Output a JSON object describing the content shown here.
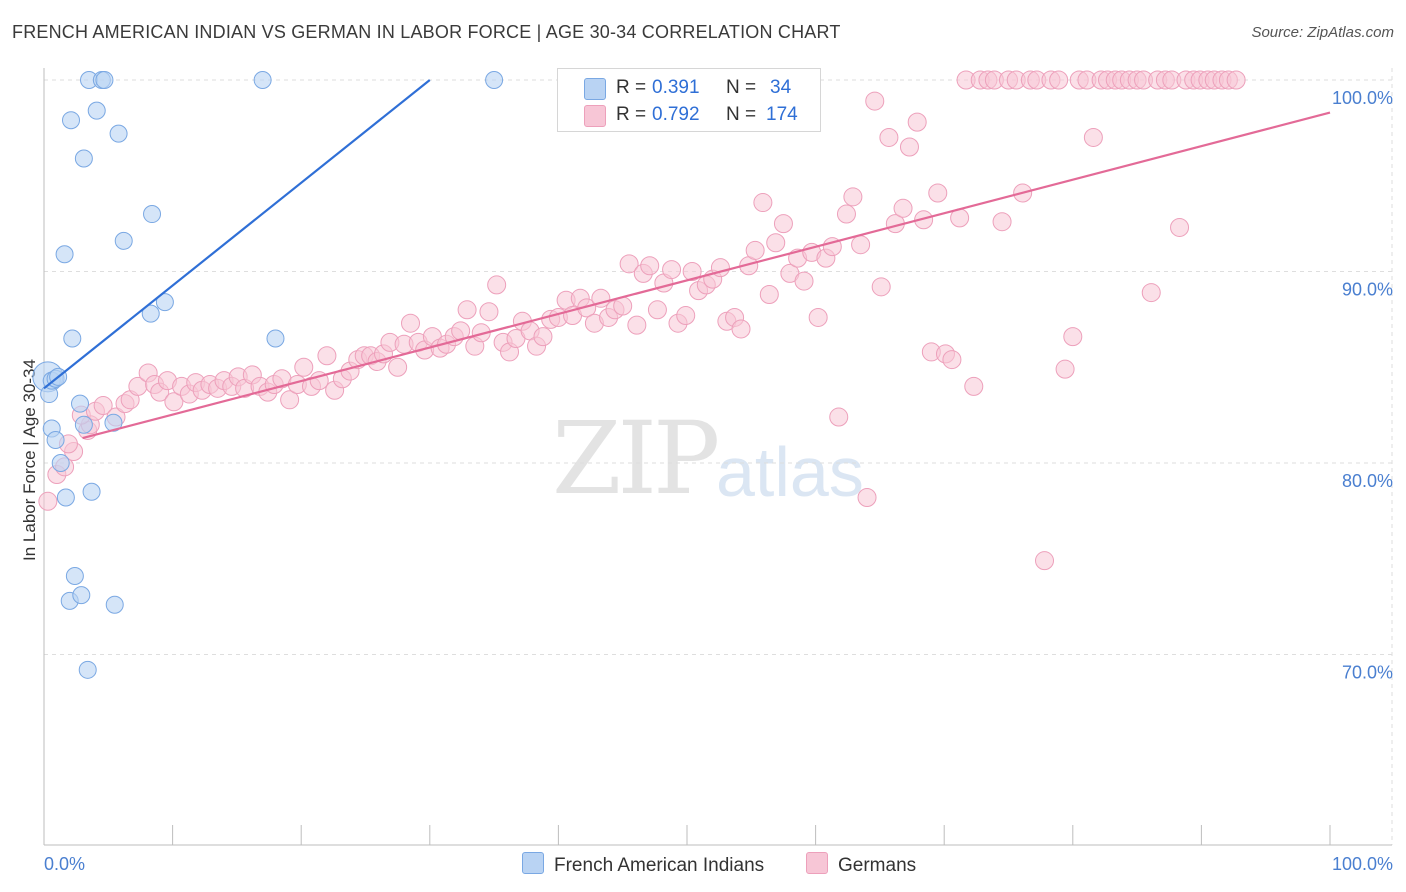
{
  "header": {
    "title": "FRENCH AMERICAN INDIAN VS GERMAN IN LABOR FORCE | AGE 30-34 CORRELATION CHART",
    "source": "Source: ZipAtlas.com"
  },
  "watermark": {
    "part1": "ZIP",
    "part2": "atlas"
  },
  "legend_top": {
    "rows": [
      {
        "r_label": "R =",
        "r_value": "0.391",
        "n_label": "N =",
        "n_value": "34"
      },
      {
        "r_label": "R =",
        "r_value": "0.792",
        "n_label": "N =",
        "n_value": "174"
      }
    ]
  },
  "legend_bottom": {
    "items": [
      "French American Indians",
      "Germans"
    ]
  },
  "colors": {
    "blue_fill": "#b9d3f3",
    "blue_stroke": "#7aa8e3",
    "blue_line": "#2f6fd6",
    "pink_fill": "#f7c6d6",
    "pink_stroke": "#eda0bb",
    "pink_line": "#e36a97",
    "tick": "#4a7fd0",
    "grid": "#dedede"
  },
  "chart_data": {
    "type": "scatter",
    "title": "FRENCH AMERICAN INDIAN VS GERMAN IN LABOR FORCE | AGE 30-34 CORRELATION CHART",
    "xlabel": "",
    "ylabel": "In Labor Force | Age 30-34",
    "xlim": [
      0,
      100
    ],
    "ylim": [
      60,
      101
    ],
    "x_tick_labels": [
      "0.0%",
      "100.0%"
    ],
    "y_ticks": [
      70,
      80,
      90,
      100
    ],
    "y_tick_labels": [
      "70.0%",
      "80.0%",
      "90.0%",
      "100.0%"
    ],
    "grid": true,
    "legend_position": "top-center",
    "series": [
      {
        "name": "French American Indians",
        "r": 0.391,
        "n": 34,
        "trend": {
          "x": [
            0.0,
            30.0
          ],
          "y": [
            83.9,
            100.0
          ]
        },
        "points": [
          [
            0.3,
            84.5
          ],
          [
            0.4,
            83.6
          ],
          [
            0.6,
            84.3
          ],
          [
            0.9,
            84.4
          ],
          [
            1.1,
            84.5
          ],
          [
            0.6,
            81.8
          ],
          [
            0.9,
            81.2
          ],
          [
            1.3,
            80.0
          ],
          [
            1.7,
            78.2
          ],
          [
            3.7,
            78.5
          ],
          [
            2.4,
            74.1
          ],
          [
            2.0,
            72.8
          ],
          [
            2.9,
            73.1
          ],
          [
            5.5,
            72.6
          ],
          [
            3.4,
            69.2
          ],
          [
            2.8,
            83.1
          ],
          [
            5.4,
            82.1
          ],
          [
            3.1,
            82.0
          ],
          [
            1.6,
            90.9
          ],
          [
            2.2,
            86.5
          ],
          [
            6.2,
            91.6
          ],
          [
            8.3,
            87.8
          ],
          [
            9.4,
            88.4
          ],
          [
            8.4,
            93.0
          ],
          [
            3.1,
            95.9
          ],
          [
            2.1,
            97.9
          ],
          [
            4.1,
            98.4
          ],
          [
            5.8,
            97.2
          ],
          [
            3.5,
            100.0
          ],
          [
            4.5,
            100.0
          ],
          [
            4.7,
            100.0
          ],
          [
            17.0,
            100.0
          ],
          [
            35.0,
            100.0
          ],
          [
            18.0,
            86.5
          ]
        ]
      },
      {
        "name": "Germans",
        "r": 0.792,
        "n": 174,
        "trend": {
          "x": [
            3.0,
            100.0
          ],
          "y": [
            81.3,
            98.3
          ]
        },
        "points": [
          [
            0.3,
            78.0
          ],
          [
            1.0,
            79.4
          ],
          [
            1.6,
            79.8
          ],
          [
            2.3,
            80.6
          ],
          [
            1.9,
            81.0
          ],
          [
            3.4,
            81.7
          ],
          [
            3.6,
            82.0
          ],
          [
            2.9,
            82.5
          ],
          [
            4.0,
            82.7
          ],
          [
            4.6,
            83.0
          ],
          [
            5.6,
            82.4
          ],
          [
            6.3,
            83.1
          ],
          [
            6.7,
            83.3
          ],
          [
            7.3,
            84.0
          ],
          [
            8.1,
            84.7
          ],
          [
            8.6,
            84.1
          ],
          [
            9.0,
            83.7
          ],
          [
            9.6,
            84.3
          ],
          [
            10.1,
            83.2
          ],
          [
            10.7,
            84.0
          ],
          [
            11.3,
            83.6
          ],
          [
            11.8,
            84.2
          ],
          [
            12.3,
            83.8
          ],
          [
            12.9,
            84.1
          ],
          [
            13.5,
            83.9
          ],
          [
            14.0,
            84.3
          ],
          [
            14.6,
            84.0
          ],
          [
            15.1,
            84.5
          ],
          [
            15.6,
            83.9
          ],
          [
            16.2,
            84.6
          ],
          [
            16.8,
            84.0
          ],
          [
            17.4,
            83.7
          ],
          [
            17.9,
            84.1
          ],
          [
            18.5,
            84.4
          ],
          [
            19.1,
            83.3
          ],
          [
            19.7,
            84.1
          ],
          [
            20.2,
            85.0
          ],
          [
            20.8,
            84.0
          ],
          [
            21.4,
            84.3
          ],
          [
            22.0,
            85.6
          ],
          [
            22.6,
            83.8
          ],
          [
            23.2,
            84.4
          ],
          [
            23.8,
            84.8
          ],
          [
            24.4,
            85.4
          ],
          [
            24.9,
            85.6
          ],
          [
            25.4,
            85.6
          ],
          [
            25.9,
            85.3
          ],
          [
            26.4,
            85.7
          ],
          [
            26.9,
            86.3
          ],
          [
            27.5,
            85.0
          ],
          [
            28.0,
            86.2
          ],
          [
            28.5,
            87.3
          ],
          [
            29.1,
            86.3
          ],
          [
            29.6,
            85.9
          ],
          [
            30.2,
            86.6
          ],
          [
            30.8,
            86.0
          ],
          [
            31.3,
            86.2
          ],
          [
            31.9,
            86.6
          ],
          [
            32.4,
            86.9
          ],
          [
            32.9,
            88.0
          ],
          [
            33.5,
            86.1
          ],
          [
            34.0,
            86.8
          ],
          [
            34.6,
            87.9
          ],
          [
            35.2,
            89.3
          ],
          [
            35.7,
            86.3
          ],
          [
            36.2,
            85.8
          ],
          [
            36.7,
            86.5
          ],
          [
            37.2,
            87.4
          ],
          [
            37.8,
            86.9
          ],
          [
            38.3,
            86.1
          ],
          [
            38.8,
            86.6
          ],
          [
            39.4,
            87.5
          ],
          [
            40.0,
            87.6
          ],
          [
            40.6,
            88.5
          ],
          [
            41.1,
            87.7
          ],
          [
            41.7,
            88.6
          ],
          [
            42.2,
            88.1
          ],
          [
            42.8,
            87.3
          ],
          [
            43.3,
            88.6
          ],
          [
            43.9,
            87.6
          ],
          [
            44.4,
            88.0
          ],
          [
            45.0,
            88.2
          ],
          [
            45.5,
            90.4
          ],
          [
            46.1,
            87.2
          ],
          [
            46.6,
            89.9
          ],
          [
            47.1,
            90.3
          ],
          [
            47.7,
            88.0
          ],
          [
            48.2,
            89.4
          ],
          [
            48.8,
            90.1
          ],
          [
            49.3,
            87.3
          ],
          [
            49.9,
            87.7
          ],
          [
            50.4,
            90.0
          ],
          [
            50.9,
            89.0
          ],
          [
            51.5,
            89.3
          ],
          [
            52.0,
            89.6
          ],
          [
            52.6,
            90.2
          ],
          [
            53.1,
            87.4
          ],
          [
            53.7,
            87.6
          ],
          [
            54.2,
            87.0
          ],
          [
            54.8,
            90.3
          ],
          [
            55.3,
            91.1
          ],
          [
            55.9,
            93.6
          ],
          [
            56.4,
            88.8
          ],
          [
            56.9,
            91.5
          ],
          [
            57.5,
            92.5
          ],
          [
            58.0,
            89.9
          ],
          [
            58.6,
            90.7
          ],
          [
            59.1,
            89.5
          ],
          [
            59.7,
            91.0
          ],
          [
            60.2,
            87.6
          ],
          [
            60.8,
            90.7
          ],
          [
            61.3,
            91.3
          ],
          [
            61.8,
            82.4
          ],
          [
            62.4,
            93.0
          ],
          [
            62.9,
            93.9
          ],
          [
            63.5,
            91.4
          ],
          [
            64.0,
            78.2
          ],
          [
            64.6,
            98.9
          ],
          [
            65.1,
            89.2
          ],
          [
            65.7,
            97.0
          ],
          [
            66.2,
            92.5
          ],
          [
            66.8,
            93.3
          ],
          [
            67.3,
            96.5
          ],
          [
            67.9,
            97.8
          ],
          [
            68.4,
            92.7
          ],
          [
            69.0,
            85.8
          ],
          [
            69.5,
            94.1
          ],
          [
            70.1,
            85.7
          ],
          [
            70.6,
            85.4
          ],
          [
            71.2,
            92.8
          ],
          [
            71.7,
            100.0
          ],
          [
            72.3,
            84.0
          ],
          [
            72.8,
            100.0
          ],
          [
            73.4,
            100.0
          ],
          [
            73.9,
            100.0
          ],
          [
            74.5,
            92.6
          ],
          [
            75.0,
            100.0
          ],
          [
            75.6,
            100.0
          ],
          [
            76.1,
            94.1
          ],
          [
            76.7,
            100.0
          ],
          [
            77.2,
            100.0
          ],
          [
            77.8,
            74.9
          ],
          [
            78.3,
            100.0
          ],
          [
            78.9,
            100.0
          ],
          [
            79.4,
            84.9
          ],
          [
            80.0,
            86.6
          ],
          [
            80.5,
            100.0
          ],
          [
            81.1,
            100.0
          ],
          [
            81.6,
            97.0
          ],
          [
            82.2,
            100.0
          ],
          [
            82.7,
            100.0
          ],
          [
            83.3,
            100.0
          ],
          [
            83.8,
            100.0
          ],
          [
            84.4,
            100.0
          ],
          [
            85.0,
            100.0
          ],
          [
            85.5,
            100.0
          ],
          [
            86.1,
            88.9
          ],
          [
            86.6,
            100.0
          ],
          [
            87.2,
            100.0
          ],
          [
            87.7,
            100.0
          ],
          [
            88.3,
            92.3
          ],
          [
            88.8,
            100.0
          ],
          [
            89.4,
            100.0
          ],
          [
            89.9,
            100.0
          ],
          [
            90.5,
            100.0
          ],
          [
            91.0,
            100.0
          ],
          [
            91.6,
            100.0
          ],
          [
            92.1,
            100.0
          ],
          [
            92.7,
            100.0
          ]
        ]
      }
    ]
  }
}
